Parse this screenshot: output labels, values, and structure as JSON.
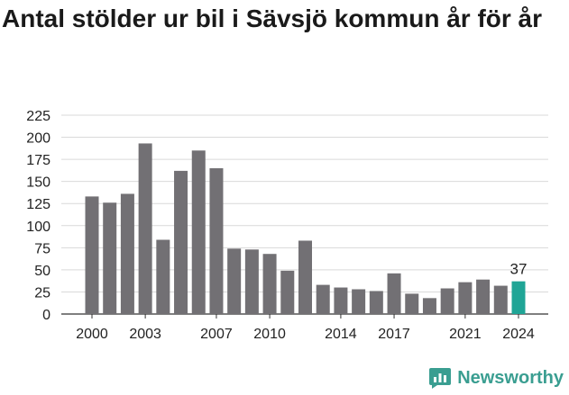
{
  "title": "Antal stölder ur bil i Sävsjö kommun år för år",
  "brand": {
    "name": "Newsworthy",
    "icon": "newsworthy-logo-icon",
    "color": "#3a9e91"
  },
  "colors": {
    "bar": "#727074",
    "highlight": "#1fa596",
    "grid": "#d9d9d9",
    "axis": "#333333"
  },
  "chart_data": {
    "type": "bar",
    "title": "Antal stölder ur bil i Sävsjö kommun år för år",
    "xlabel": "",
    "ylabel": "",
    "categories": [
      "2000",
      "2001",
      "2002",
      "2003",
      "2004",
      "2005",
      "2006",
      "2007",
      "2008",
      "2009",
      "2010",
      "2011",
      "2012",
      "2013",
      "2014",
      "2015",
      "2016",
      "2017",
      "2018",
      "2019",
      "2020",
      "2021",
      "2022",
      "2023",
      "2024"
    ],
    "values": [
      133,
      126,
      136,
      193,
      84,
      162,
      185,
      165,
      74,
      73,
      68,
      49,
      83,
      33,
      30,
      28,
      26,
      46,
      23,
      18,
      29,
      36,
      39,
      32,
      37
    ],
    "x_tick_labels": [
      "2000",
      "2003",
      "2007",
      "2010",
      "2014",
      "2017",
      "2021",
      "2024"
    ],
    "y_ticks": [
      0,
      25,
      50,
      75,
      100,
      125,
      150,
      175,
      200,
      225
    ],
    "ylim": [
      0,
      225
    ],
    "highlight_category": "2024",
    "data_labels": [
      {
        "category": "2024",
        "text": "37"
      }
    ],
    "grid": true
  }
}
